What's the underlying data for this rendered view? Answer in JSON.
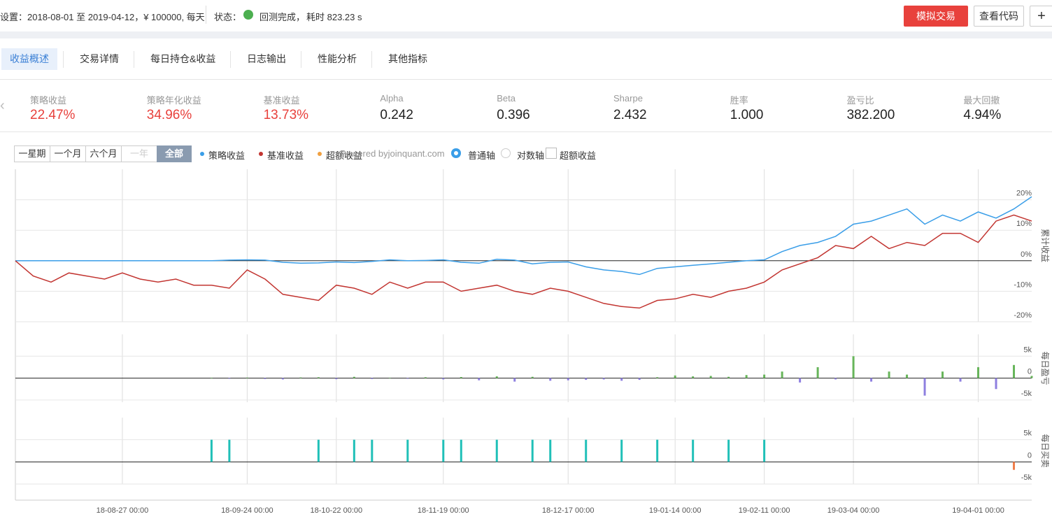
{
  "header": {
    "settings": "设置：2018-08-01 至 2019-04-12，¥ 100000, 每天",
    "status_label": "状态：",
    "status": "回测完成，",
    "elapsed": "耗时 823.23 s",
    "buttons": [
      "模拟交易",
      "查看代码",
      "+"
    ]
  },
  "tabs": [
    "收益概述",
    "交易详情",
    "每日持仓&收益",
    "日志输出",
    "性能分析",
    "其他指标"
  ],
  "metrics": [
    {
      "label": "策略收益",
      "value": "22.47%"
    },
    {
      "label": "策略年化收益",
      "value": "34.96%"
    },
    {
      "label": "基准收益",
      "value": "13.73%"
    },
    {
      "label": "Alpha",
      "value": "0.242"
    },
    {
      "label": "Beta",
      "value": "0.396"
    },
    {
      "label": "Sharpe",
      "value": "2.432"
    },
    {
      "label": "胜率",
      "value": "1.000"
    },
    {
      "label": "盈亏比",
      "value": "382.200"
    },
    {
      "label": "最大回撤",
      "value": "4.94%"
    }
  ],
  "toolbar": {
    "ranges": [
      "一星期",
      "一个月",
      "六个月",
      "一年",
      "全部"
    ],
    "powered": "Powered byjoinquant.com",
    "axis_options": [
      "普通轴",
      "对数轴"
    ],
    "checkbox": "超额收益"
  },
  "x_axis": {
    "categories": [
      null,
      null,
      null,
      null,
      null,
      null,
      "18-08-27 00:00",
      null,
      null,
      null,
      null,
      null,
      null,
      "18-09-24 00:00",
      null,
      null,
      null,
      null,
      "18-10-22 00:00",
      null,
      null,
      null,
      null,
      null,
      "18-11-19 00:00",
      null,
      null,
      null,
      null,
      null,
      null,
      "18-12-17 00:00",
      null,
      null,
      null,
      null,
      null,
      "19-01-14 00:00",
      null,
      null,
      null,
      null,
      "19-02-11 00:00",
      null,
      null,
      null,
      null,
      "19-03-04 00:00",
      null,
      null,
      null,
      null,
      null,
      null,
      "19-04-01 00:00",
      null,
      null,
      null
    ]
  },
  "chart_data": [
    {
      "type": "line",
      "axis_label": "累计收益",
      "ylim": [
        -20,
        30
      ],
      "yticks": [
        {
          "value": 20,
          "label": "20%"
        },
        {
          "value": 10,
          "label": "10%"
        },
        {
          "value": 0,
          "label": "0%"
        },
        {
          "value": -10,
          "label": "-10%"
        },
        {
          "value": -20,
          "label": "-20%"
        }
      ],
      "series": [
        {
          "name": "策略收益",
          "color": "#3a9ee8",
          "values": [
            0,
            0,
            0,
            0,
            0,
            0,
            0,
            0,
            0,
            0,
            0,
            0,
            0.2,
            0.3,
            0.2,
            -0.5,
            -0.8,
            -0.7,
            -0.4,
            -0.6,
            -0.2,
            0.3,
            0,
            0.1,
            0.3,
            -0.5,
            -0.8,
            0.5,
            0.2,
            -1,
            -0.5,
            -0.4,
            -2,
            -3,
            -3.5,
            -4.5,
            -2.5,
            -2,
            -1.5,
            -1,
            -0.5,
            0,
            0.3,
            3,
            5,
            6,
            8,
            12,
            13,
            15,
            17,
            12,
            15,
            13,
            16,
            14,
            17,
            21
          ]
        },
        {
          "name": "基准收益",
          "color": "#c23531",
          "values": [
            0,
            -5,
            -7,
            -4,
            -5,
            -6,
            -4,
            -6,
            -7,
            -6,
            -8,
            -8,
            -9,
            -3,
            -6,
            -11,
            -12,
            -13,
            -8,
            -9,
            -11,
            -7,
            -9,
            -7,
            -7,
            -10,
            -9,
            -8,
            -10,
            -11,
            -9,
            -10,
            -12,
            -14,
            -15,
            -15.5,
            -13,
            -12.5,
            -11,
            -12,
            -10,
            -9,
            -7,
            -3,
            -1,
            1,
            5,
            4,
            8,
            4,
            6,
            5,
            9,
            9,
            6,
            13,
            15,
            13
          ]
        },
        {
          "name": "超额收益",
          "color": "#f0a040",
          "values": []
        }
      ]
    },
    {
      "type": "bar",
      "axis_label": "每日盈亏",
      "ylim": [
        -5500,
        10000
      ],
      "positive_color": "#67b55a",
      "negative_color": "#8e7fe0",
      "yticks": [
        {
          "value": 5000,
          "label": "5k"
        },
        0,
        {
          "value": -5000,
          "label": "-5k"
        }
      ],
      "values": [
        0,
        0,
        0,
        0,
        0,
        0,
        0,
        0,
        0,
        0,
        0,
        100,
        -150,
        120,
        -200,
        -300,
        150,
        200,
        -250,
        300,
        -200,
        100,
        -150,
        200,
        -300,
        250,
        -500,
        400,
        -800,
        300,
        -600,
        -500,
        -400,
        -300,
        -600,
        -400,
        200,
        600,
        400,
        500,
        300,
        700,
        800,
        1500,
        -1000,
        2500,
        -300,
        5000,
        -800,
        1500,
        800,
        -4000,
        1500,
        -800,
        2500,
        -2500,
        3000,
        500
      ]
    },
    {
      "type": "bar",
      "axis_label": "每日买卖",
      "ylim": [
        -5000,
        10000
      ],
      "positive_color": "#20c0b8",
      "negative_color": "#f07e4a",
      "yticks": [
        {
          "value": 5000,
          "label": "5k"
        },
        0,
        {
          "value": -5000,
          "label": "-5k"
        }
      ],
      "values": [
        0,
        0,
        0,
        0,
        0,
        0,
        0,
        0,
        0,
        0,
        0,
        5000,
        5000,
        0,
        0,
        0,
        0,
        5000,
        0,
        5000,
        5000,
        0,
        5000,
        0,
        5000,
        5000,
        0,
        5000,
        0,
        5000,
        5000,
        0,
        5000,
        0,
        5000,
        0,
        5000,
        0,
        5000,
        0,
        5000,
        0,
        5000,
        0,
        0,
        0,
        0,
        0,
        0,
        0,
        0,
        0,
        0,
        0,
        0,
        0,
        -1800,
        0
      ]
    }
  ]
}
